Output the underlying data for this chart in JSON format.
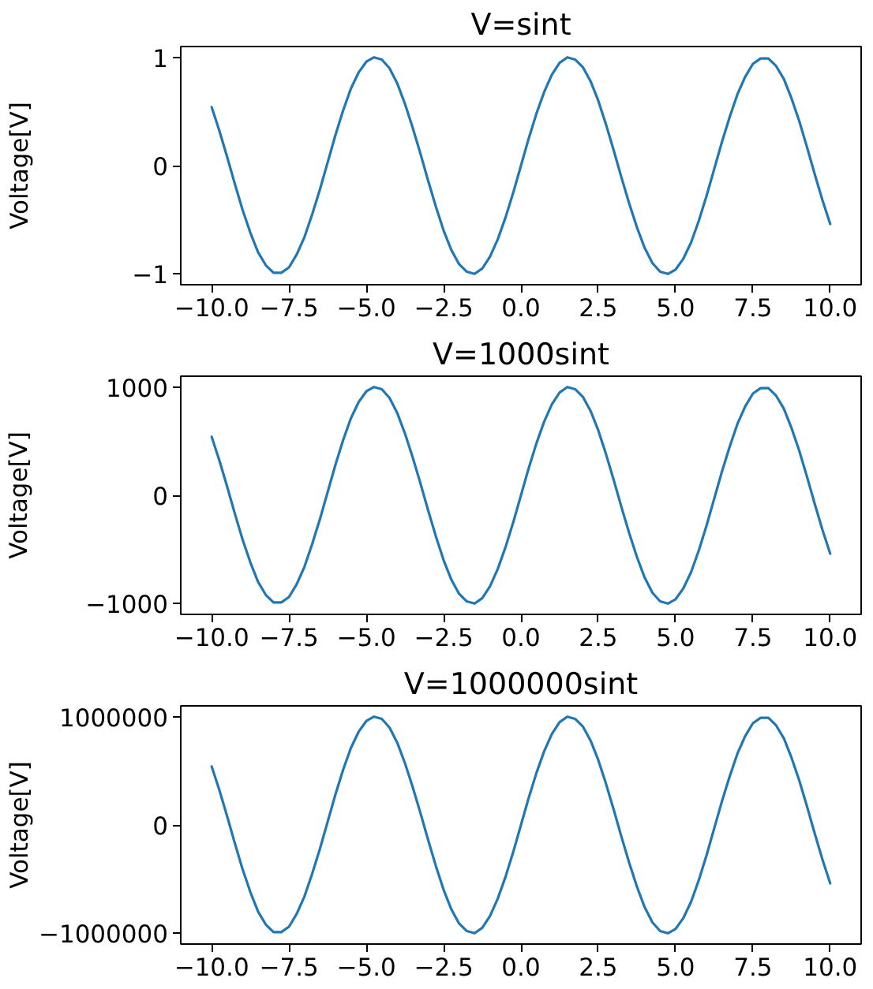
{
  "chart_data": [
    {
      "type": "line",
      "title": "V=sint",
      "ylabel": "Voltage[V]",
      "x": [
        -10,
        -9.75,
        -9.5,
        -9.25,
        -9,
        -8.75,
        -8.5,
        -8.25,
        -8,
        -7.75,
        -7.5,
        -7.25,
        -7,
        -6.75,
        -6.5,
        -6.25,
        -6,
        -5.75,
        -5.5,
        -5.25,
        -5,
        -4.75,
        -4.5,
        -4.25,
        -4,
        -3.75,
        -3.5,
        -3.25,
        -3,
        -2.75,
        -2.5,
        -2.25,
        -2,
        -1.75,
        -1.5,
        -1.25,
        -1,
        -0.75,
        -0.5,
        -0.25,
        0,
        0.25,
        0.5,
        0.75,
        1,
        1.25,
        1.5,
        1.75,
        2,
        2.25,
        2.5,
        2.75,
        3,
        3.25,
        3.5,
        3.75,
        4,
        4.25,
        4.5,
        4.75,
        5,
        5.25,
        5.5,
        5.75,
        6,
        6.25,
        6.5,
        6.75,
        7,
        7.25,
        7.5,
        7.75,
        8,
        8.25,
        8.5,
        8.75,
        9,
        9.25,
        9.5,
        9.75,
        10
      ],
      "series": [
        {
          "color": "#1f77b4",
          "values": [
            0.54,
            0.32,
            0.08,
            -0.17,
            -0.41,
            -0.62,
            -0.8,
            -0.92,
            -0.99,
            -0.99,
            -0.94,
            -0.82,
            -0.66,
            -0.45,
            -0.22,
            0.03,
            0.28,
            0.51,
            0.71,
            0.86,
            0.96,
            1.0,
            0.98,
            0.9,
            0.76,
            0.57,
            0.35,
            0.11,
            -0.14,
            -0.38,
            -0.6,
            -0.78,
            -0.91,
            -0.98,
            -1.0,
            -0.95,
            -0.84,
            -0.68,
            -0.48,
            -0.25,
            0,
            0.25,
            0.48,
            0.68,
            0.84,
            0.95,
            1.0,
            0.98,
            0.91,
            0.78,
            0.6,
            0.38,
            0.14,
            -0.11,
            -0.35,
            -0.57,
            -0.76,
            -0.9,
            -0.98,
            -1.0,
            -0.96,
            -0.86,
            -0.71,
            -0.51,
            -0.28,
            -0.03,
            0.22,
            0.45,
            0.66,
            0.82,
            0.94,
            0.99,
            0.99,
            0.92,
            0.8,
            0.62,
            0.41,
            0.17,
            -0.08,
            -0.32,
            -0.54
          ]
        }
      ],
      "xlim": [
        -11,
        11
      ],
      "ylim": [
        -1.1,
        1.1
      ],
      "xticks": [
        {
          "value": -10,
          "label": "−10.0"
        },
        {
          "value": -7.5,
          "label": "−7.5"
        },
        {
          "value": -5,
          "label": "−5.0"
        },
        {
          "value": -2.5,
          "label": "−2.5"
        },
        {
          "value": 0,
          "label": "0.0"
        },
        {
          "value": 2.5,
          "label": "2.5"
        },
        {
          "value": 5,
          "label": "5.0"
        },
        {
          "value": 7.5,
          "label": "7.5"
        },
        {
          "value": 10,
          "label": "10.0"
        }
      ],
      "yticks": [
        {
          "value": -1,
          "label": "−1"
        },
        0,
        1
      ]
    },
    {
      "type": "line",
      "title": "V=1000sint",
      "ylabel": "Voltage[V]",
      "x": [
        -10,
        -9.75,
        -9.5,
        -9.25,
        -9,
        -8.75,
        -8.5,
        -8.25,
        -8,
        -7.75,
        -7.5,
        -7.25,
        -7,
        -6.75,
        -6.5,
        -6.25,
        -6,
        -5.75,
        -5.5,
        -5.25,
        -5,
        -4.75,
        -4.5,
        -4.25,
        -4,
        -3.75,
        -3.5,
        -3.25,
        -3,
        -2.75,
        -2.5,
        -2.25,
        -2,
        -1.75,
        -1.5,
        -1.25,
        -1,
        -0.75,
        -0.5,
        -0.25,
        0,
        0.25,
        0.5,
        0.75,
        1,
        1.25,
        1.5,
        1.75,
        2,
        2.25,
        2.5,
        2.75,
        3,
        3.25,
        3.5,
        3.75,
        4,
        4.25,
        4.5,
        4.75,
        5,
        5.25,
        5.5,
        5.75,
        6,
        6.25,
        6.5,
        6.75,
        7,
        7.25,
        7.5,
        7.75,
        8,
        8.25,
        8.5,
        8.75,
        9,
        9.25,
        9.5,
        9.75,
        10
      ],
      "series": [
        {
          "color": "#1f77b4",
          "values": [
            540,
            320,
            80,
            -170,
            -410,
            -620,
            -800,
            -920,
            -990,
            -990,
            -940,
            -820,
            -660,
            -450,
            -220,
            30,
            280,
            510,
            710,
            860,
            960,
            1000,
            980,
            900,
            760,
            570,
            350,
            110,
            -140,
            -380,
            -600,
            -780,
            -910,
            -980,
            -1000,
            -950,
            -840,
            -680,
            -480,
            -250,
            0,
            250,
            480,
            680,
            840,
            950,
            1000,
            980,
            910,
            780,
            600,
            380,
            140,
            -110,
            -350,
            -570,
            -760,
            -900,
            -980,
            -1000,
            -960,
            -860,
            -710,
            -510,
            -280,
            -30,
            220,
            450,
            660,
            820,
            940,
            990,
            990,
            920,
            800,
            620,
            410,
            170,
            -80,
            -320,
            -540
          ]
        }
      ],
      "xlim": [
        -11,
        11
      ],
      "ylim": [
        -1100,
        1100
      ],
      "xticks": [
        {
          "value": -10,
          "label": "−10.0"
        },
        {
          "value": -7.5,
          "label": "−7.5"
        },
        {
          "value": -5,
          "label": "−5.0"
        },
        {
          "value": -2.5,
          "label": "−2.5"
        },
        {
          "value": 0,
          "label": "0.0"
        },
        {
          "value": 2.5,
          "label": "2.5"
        },
        {
          "value": 5,
          "label": "5.0"
        },
        {
          "value": 7.5,
          "label": "7.5"
        },
        {
          "value": 10,
          "label": "10.0"
        }
      ],
      "yticks": [
        {
          "value": -1000,
          "label": "−1000"
        },
        0,
        1000
      ]
    },
    {
      "type": "line",
      "title": "V=1000000sint",
      "ylabel": "Voltage[V]",
      "x": [
        -10,
        -9.75,
        -9.5,
        -9.25,
        -9,
        -8.75,
        -8.5,
        -8.25,
        -8,
        -7.75,
        -7.5,
        -7.25,
        -7,
        -6.75,
        -6.5,
        -6.25,
        -6,
        -5.75,
        -5.5,
        -5.25,
        -5,
        -4.75,
        -4.5,
        -4.25,
        -4,
        -3.75,
        -3.5,
        -3.25,
        -3,
        -2.75,
        -2.5,
        -2.25,
        -2,
        -1.75,
        -1.5,
        -1.25,
        -1,
        -0.75,
        -0.5,
        -0.25,
        0,
        0.25,
        0.5,
        0.75,
        1,
        1.25,
        1.5,
        1.75,
        2,
        2.25,
        2.5,
        2.75,
        3,
        3.25,
        3.5,
        3.75,
        4,
        4.25,
        4.5,
        4.75,
        5,
        5.25,
        5.5,
        5.75,
        6,
        6.25,
        6.5,
        6.75,
        7,
        7.25,
        7.5,
        7.75,
        8,
        8.25,
        8.5,
        8.75,
        9,
        9.25,
        9.5,
        9.75,
        10
      ],
      "series": [
        {
          "color": "#1f77b4",
          "values": [
            540000,
            320000,
            80000,
            -170000,
            -410000,
            -620000,
            -800000,
            -920000,
            -990000,
            -990000,
            -940000,
            -820000,
            -660000,
            -450000,
            -220000,
            30000,
            280000,
            510000,
            710000,
            860000,
            960000,
            1000000,
            980000,
            900000,
            760000,
            570000,
            350000,
            110000,
            -140000,
            -380000,
            -600000,
            -780000,
            -910000,
            -980000,
            -1000000,
            -950000,
            -840000,
            -680000,
            -480000,
            -250000,
            0,
            250000,
            480000,
            680000,
            840000,
            950000,
            1000000,
            980000,
            910000,
            780000,
            600000,
            380000,
            140000,
            -110000,
            -350000,
            -570000,
            -760000,
            -900000,
            -980000,
            -1000000,
            -960000,
            -860000,
            -710000,
            -510000,
            -280000,
            -30000,
            220000,
            450000,
            660000,
            820000,
            940000,
            990000,
            990000,
            920000,
            800000,
            620000,
            410000,
            170000,
            -80000,
            -320000,
            -540000
          ]
        }
      ],
      "xlim": [
        -11,
        11
      ],
      "ylim": [
        -1100000,
        1100000
      ],
      "xticks": [
        {
          "value": -10,
          "label": "−10.0"
        },
        {
          "value": -7.5,
          "label": "−7.5"
        },
        {
          "value": -5,
          "label": "−5.0"
        },
        {
          "value": -2.5,
          "label": "−2.5"
        },
        {
          "value": 0,
          "label": "0.0"
        },
        {
          "value": 2.5,
          "label": "2.5"
        },
        {
          "value": 5,
          "label": "5.0"
        },
        {
          "value": 7.5,
          "label": "7.5"
        },
        {
          "value": 10,
          "label": "10.0"
        }
      ],
      "yticks": [
        {
          "value": -1000000,
          "label": "−1000000"
        },
        0,
        1000000
      ]
    }
  ]
}
